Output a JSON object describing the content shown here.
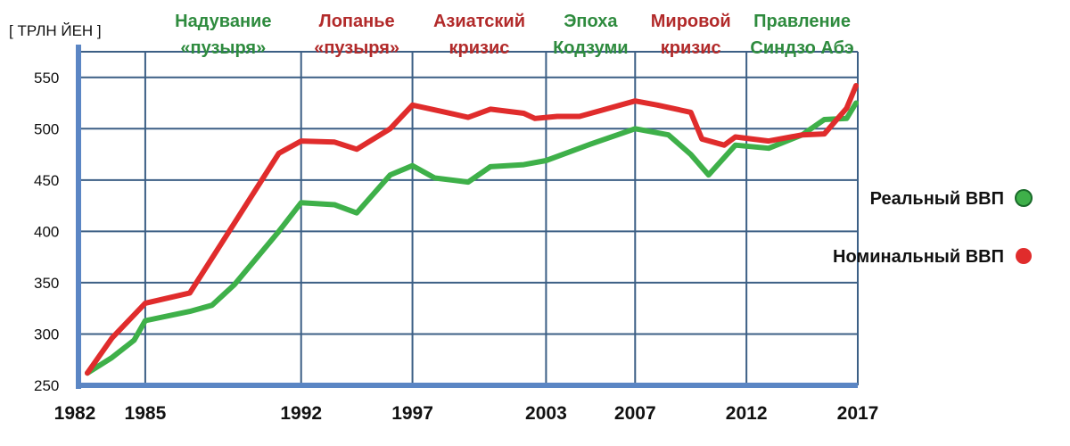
{
  "chart_data": {
    "type": "line",
    "unit_label": "[ ТРЛН ЙЕН ]",
    "x_ticks": [
      "1982",
      "1985",
      "1992",
      "1997",
      "2003",
      "2007",
      "2012",
      "2017"
    ],
    "y_ticks": [
      "250",
      "300",
      "350",
      "400",
      "450",
      "500",
      "550"
    ],
    "ylim": [
      250,
      575
    ],
    "xlim": [
      1982,
      2017
    ],
    "grid": true,
    "legend_position": "right",
    "eras": [
      {
        "lines": [
          "Надувание",
          "«пузыря»"
        ],
        "color": "#2e8b3e"
      },
      {
        "lines": [
          "Лопанье",
          "«пузыря»"
        ],
        "color": "#b22a2a"
      },
      {
        "lines": [
          "Азиатский",
          "кризис"
        ],
        "color": "#b22a2a"
      },
      {
        "lines": [
          "Эпоха",
          "Кодзуми"
        ],
        "color": "#2e8b3e"
      },
      {
        "lines": [
          "Мировой",
          "кризис"
        ],
        "color": "#b22a2a"
      },
      {
        "lines": [
          "Правление",
          "Синдзо Абэ"
        ],
        "color": "#2e8b3e"
      }
    ],
    "series": [
      {
        "name": "Реальный ВВП",
        "color": "#3eb049",
        "x": [
          1982,
          1983.5,
          1984.5,
          1985,
          1987,
          1988,
          1989,
          1991,
          1992,
          1993.5,
          1994.5,
          1996,
          1997,
          1998,
          1999.5,
          2000.5,
          2002,
          2003,
          2005,
          2007,
          2008.5,
          2009.5,
          2010.3,
          2011.5,
          2013,
          2014.5,
          2015.5,
          2016.5,
          2017.5
        ],
        "values": [
          262,
          277,
          294,
          313,
          322,
          328,
          348,
          400,
          428,
          426,
          418,
          455,
          464,
          452,
          448,
          463,
          465,
          469,
          485,
          500,
          494,
          475,
          455,
          484,
          481,
          494,
          509,
          510,
          525
        ]
      },
      {
        "name": "Номинальный ВВП",
        "color": "#e02c2c",
        "x": [
          1982,
          1983.5,
          1985,
          1987,
          1989,
          1991,
          1992,
          1993.5,
          1994.5,
          1996,
          1997,
          1998.5,
          1999.5,
          2000.5,
          2002,
          2002.5,
          2003.5,
          2004.5,
          2005.5,
          2007,
          2008,
          2009.5,
          2010,
          2011,
          2011.5,
          2013,
          2014.5,
          2015.5,
          2016.5,
          2017.5
        ],
        "values": [
          262,
          296,
          330,
          340,
          408,
          476,
          488,
          487,
          480,
          500,
          523,
          516,
          511,
          519,
          515,
          510,
          512,
          512,
          518,
          527,
          523,
          516,
          490,
          484,
          492,
          488,
          494,
          495,
          520,
          542
        ]
      }
    ]
  }
}
